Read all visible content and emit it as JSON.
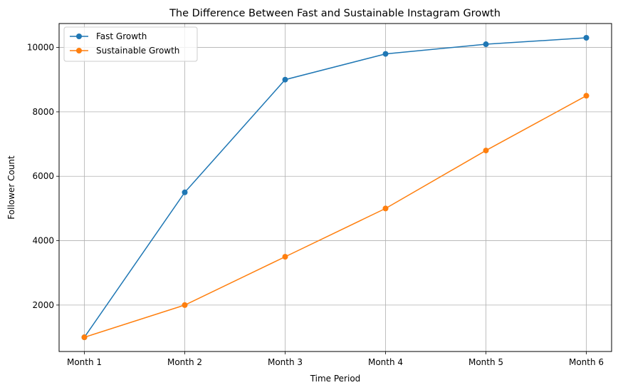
{
  "chart_data": {
    "type": "line",
    "title": "The Difference Between Fast and Sustainable Instagram Growth",
    "xlabel": "Time Period",
    "ylabel": "Follower Count",
    "categories": [
      "Month 1",
      "Month 2",
      "Month 3",
      "Month 4",
      "Month 5",
      "Month 6"
    ],
    "yticks": [
      2000,
      4000,
      6000,
      8000,
      10000
    ],
    "ylim": [
      558,
      10743
    ],
    "grid": true,
    "legend_position": "top-left",
    "series": [
      {
        "name": "Fast Growth",
        "color": "#1f77b4",
        "values": [
          1000,
          5500,
          9000,
          9800,
          10100,
          10300
        ]
      },
      {
        "name": "Sustainable Growth",
        "color": "#ff7f0e",
        "values": [
          1000,
          2000,
          3500,
          5000,
          6800,
          8500
        ]
      }
    ]
  }
}
